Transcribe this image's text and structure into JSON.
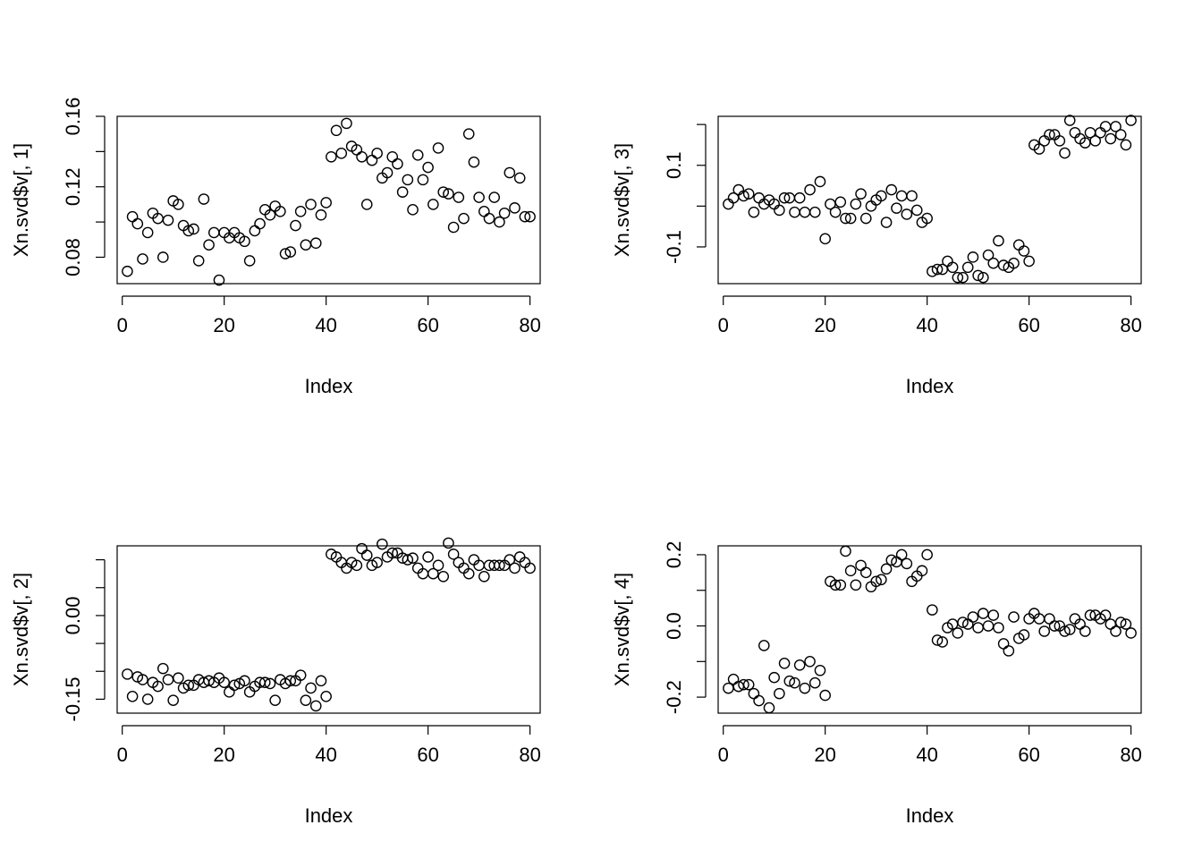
{
  "chart_data": [
    {
      "type": "scatter",
      "title": "",
      "xlabel": "Index",
      "ylabel": "Xn.svd$v[, 1]",
      "xlim": [
        -1,
        82
      ],
      "ylim": [
        0.065,
        0.16
      ],
      "xticks": [
        0,
        20,
        40,
        60,
        80
      ],
      "xtick_labels": [
        "0",
        "20",
        "40",
        "60",
        "80"
      ],
      "yticks": [
        0.08,
        0.1,
        0.12,
        0.14,
        0.16
      ],
      "ytick_labels": [
        "0.08",
        "",
        "0.12",
        "",
        "0.16"
      ],
      "grid": false,
      "x": [
        1,
        2,
        3,
        4,
        5,
        6,
        7,
        8,
        9,
        10,
        11,
        12,
        13,
        14,
        15,
        16,
        17,
        18,
        19,
        20,
        21,
        22,
        23,
        24,
        25,
        26,
        27,
        28,
        29,
        30,
        31,
        32,
        33,
        34,
        35,
        36,
        37,
        38,
        39,
        40,
        41,
        42,
        43,
        44,
        45,
        46,
        47,
        48,
        49,
        50,
        51,
        52,
        53,
        54,
        55,
        56,
        57,
        58,
        59,
        60,
        61,
        62,
        63,
        64,
        65,
        66,
        67,
        68,
        69,
        70,
        71,
        72,
        73,
        74,
        75,
        76,
        77,
        78,
        79,
        80
      ],
      "y": [
        0.072,
        0.103,
        0.099,
        0.079,
        0.094,
        0.105,
        0.102,
        0.08,
        0.101,
        0.112,
        0.11,
        0.098,
        0.095,
        0.096,
        0.078,
        0.113,
        0.087,
        0.094,
        0.067,
        0.094,
        0.091,
        0.094,
        0.091,
        0.089,
        0.078,
        0.095,
        0.099,
        0.107,
        0.104,
        0.109,
        0.106,
        0.082,
        0.083,
        0.098,
        0.106,
        0.087,
        0.11,
        0.088,
        0.104,
        0.111,
        0.137,
        0.152,
        0.139,
        0.156,
        0.143,
        0.141,
        0.137,
        0.11,
        0.135,
        0.139,
        0.125,
        0.128,
        0.137,
        0.133,
        0.117,
        0.124,
        0.107,
        0.138,
        0.124,
        0.131,
        0.11,
        0.142,
        0.117,
        0.116,
        0.097,
        0.114,
        0.102,
        0.15,
        0.134,
        0.114,
        0.106,
        0.102,
        0.114,
        0.1,
        0.105,
        0.128,
        0.108,
        0.125,
        0.103,
        0.103
      ]
    },
    {
      "type": "scatter",
      "title": "",
      "xlabel": "Index",
      "ylabel": "Xn.svd$v[, 3]",
      "xlim": [
        -1,
        82
      ],
      "ylim": [
        -0.19,
        0.22
      ],
      "xticks": [
        0,
        20,
        40,
        60,
        80
      ],
      "xtick_labels": [
        "0",
        "20",
        "40",
        "60",
        "80"
      ],
      "yticks": [
        -0.1,
        0.0,
        0.1,
        0.2
      ],
      "ytick_labels": [
        "-0.1",
        "",
        "0.1",
        ""
      ],
      "grid": false,
      "x": [
        1,
        2,
        3,
        4,
        5,
        6,
        7,
        8,
        9,
        10,
        11,
        12,
        13,
        14,
        15,
        16,
        17,
        18,
        19,
        20,
        21,
        22,
        23,
        24,
        25,
        26,
        27,
        28,
        29,
        30,
        31,
        32,
        33,
        34,
        35,
        36,
        37,
        38,
        39,
        40,
        41,
        42,
        43,
        44,
        45,
        46,
        47,
        48,
        49,
        50,
        51,
        52,
        53,
        54,
        55,
        56,
        57,
        58,
        59,
        60,
        61,
        62,
        63,
        64,
        65,
        66,
        67,
        68,
        69,
        70,
        71,
        72,
        73,
        74,
        75,
        76,
        77,
        78,
        79,
        80
      ],
      "y": [
        0.005,
        0.02,
        0.04,
        0.025,
        0.03,
        -0.015,
        0.02,
        0.005,
        0.015,
        0.005,
        -0.01,
        0.02,
        0.02,
        -0.015,
        0.02,
        -0.015,
        0.04,
        -0.015,
        0.06,
        -0.08,
        0.005,
        -0.015,
        0.01,
        -0.03,
        -0.03,
        0.005,
        0.03,
        -0.03,
        0.0,
        0.015,
        0.025,
        -0.04,
        0.04,
        -0.005,
        0.025,
        -0.02,
        0.025,
        -0.01,
        -0.04,
        -0.03,
        -0.16,
        -0.155,
        -0.155,
        -0.135,
        -0.15,
        -0.175,
        -0.175,
        -0.15,
        -0.125,
        -0.17,
        -0.175,
        -0.12,
        -0.14,
        -0.085,
        -0.145,
        -0.15,
        -0.14,
        -0.095,
        -0.11,
        -0.135,
        0.15,
        0.14,
        0.16,
        0.175,
        0.175,
        0.16,
        0.13,
        0.21,
        0.18,
        0.165,
        0.155,
        0.18,
        0.16,
        0.18,
        0.195,
        0.165,
        0.195,
        0.175,
        0.15,
        0.21
      ]
    },
    {
      "type": "scatter",
      "title": "",
      "xlabel": "Index",
      "ylabel": "Xn.svd$v[, 2]",
      "xlim": [
        -1,
        82
      ],
      "ylim": [
        -0.175,
        0.125
      ],
      "xticks": [
        0,
        20,
        40,
        60,
        80
      ],
      "xtick_labels": [
        "0",
        "20",
        "40",
        "60",
        "80"
      ],
      "yticks": [
        -0.15,
        -0.1,
        -0.05,
        0.0,
        0.05,
        0.1
      ],
      "ytick_labels": [
        "-0.15",
        "",
        "",
        "0.00",
        "",
        ""
      ],
      "grid": false,
      "x": [
        1,
        2,
        3,
        4,
        5,
        6,
        7,
        8,
        9,
        10,
        11,
        12,
        13,
        14,
        15,
        16,
        17,
        18,
        19,
        20,
        21,
        22,
        23,
        24,
        25,
        26,
        27,
        28,
        29,
        30,
        31,
        32,
        33,
        34,
        35,
        36,
        37,
        38,
        39,
        40,
        41,
        42,
        43,
        44,
        45,
        46,
        47,
        48,
        49,
        50,
        51,
        52,
        53,
        54,
        55,
        56,
        57,
        58,
        59,
        60,
        61,
        62,
        63,
        64,
        65,
        66,
        67,
        68,
        69,
        70,
        71,
        72,
        73,
        74,
        75,
        76,
        77,
        78,
        79,
        80
      ],
      "y": [
        -0.105,
        -0.145,
        -0.11,
        -0.115,
        -0.15,
        -0.12,
        -0.127,
        -0.095,
        -0.115,
        -0.152,
        -0.112,
        -0.13,
        -0.125,
        -0.125,
        -0.115,
        -0.12,
        -0.117,
        -0.12,
        -0.112,
        -0.12,
        -0.137,
        -0.125,
        -0.122,
        -0.117,
        -0.137,
        -0.127,
        -0.12,
        -0.12,
        -0.122,
        -0.152,
        -0.115,
        -0.122,
        -0.117,
        -0.117,
        -0.107,
        -0.152,
        -0.13,
        -0.162,
        -0.117,
        -0.145,
        0.11,
        0.105,
        0.095,
        0.085,
        0.095,
        0.09,
        0.12,
        0.108,
        0.09,
        0.095,
        0.128,
        0.105,
        0.112,
        0.112,
        0.103,
        0.1,
        0.103,
        0.085,
        0.075,
        0.105,
        0.075,
        0.09,
        0.07,
        0.13,
        0.11,
        0.095,
        0.085,
        0.075,
        0.1,
        0.09,
        0.07,
        0.09,
        0.09,
        0.09,
        0.09,
        0.1,
        0.085,
        0.105,
        0.095,
        0.085
      ]
    },
    {
      "type": "scatter",
      "title": "",
      "xlabel": "Index",
      "ylabel": "Xn.svd$v[, 4]",
      "xlim": [
        -1,
        82
      ],
      "ylim": [
        -0.245,
        0.225
      ],
      "xticks": [
        0,
        20,
        40,
        60,
        80
      ],
      "xtick_labels": [
        "0",
        "20",
        "40",
        "60",
        "80"
      ],
      "yticks": [
        -0.2,
        -0.1,
        0.0,
        0.1,
        0.2
      ],
      "ytick_labels": [
        "-0.2",
        "",
        "0.0",
        "",
        "0.2"
      ],
      "grid": false,
      "x": [
        1,
        2,
        3,
        4,
        5,
        6,
        7,
        8,
        9,
        10,
        11,
        12,
        13,
        14,
        15,
        16,
        17,
        18,
        19,
        20,
        21,
        22,
        23,
        24,
        25,
        26,
        27,
        28,
        29,
        30,
        31,
        32,
        33,
        34,
        35,
        36,
        37,
        38,
        39,
        40,
        41,
        42,
        43,
        44,
        45,
        46,
        47,
        48,
        49,
        50,
        51,
        52,
        53,
        54,
        55,
        56,
        57,
        58,
        59,
        60,
        61,
        62,
        63,
        64,
        65,
        66,
        67,
        68,
        69,
        70,
        71,
        72,
        73,
        74,
        75,
        76,
        77,
        78,
        79,
        80
      ],
      "y": [
        -0.175,
        -0.15,
        -0.17,
        -0.165,
        -0.165,
        -0.19,
        -0.21,
        -0.055,
        -0.23,
        -0.145,
        -0.19,
        -0.105,
        -0.155,
        -0.16,
        -0.11,
        -0.175,
        -0.1,
        -0.16,
        -0.125,
        -0.195,
        0.125,
        0.115,
        0.115,
        0.21,
        0.155,
        0.115,
        0.17,
        0.15,
        0.11,
        0.125,
        0.13,
        0.16,
        0.185,
        0.18,
        0.2,
        0.175,
        0.125,
        0.14,
        0.155,
        0.2,
        0.045,
        -0.04,
        -0.045,
        -0.005,
        0.005,
        -0.02,
        0.01,
        0.005,
        0.025,
        -0.005,
        0.035,
        0.0,
        0.03,
        -0.005,
        -0.05,
        -0.07,
        0.025,
        -0.035,
        -0.025,
        0.02,
        0.035,
        0.02,
        -0.015,
        0.02,
        0.0,
        0.0,
        -0.015,
        -0.01,
        0.02,
        0.005,
        -0.015,
        0.03,
        0.03,
        0.02,
        0.03,
        0.005,
        -0.015,
        0.01,
        0.005,
        -0.02
      ]
    }
  ]
}
